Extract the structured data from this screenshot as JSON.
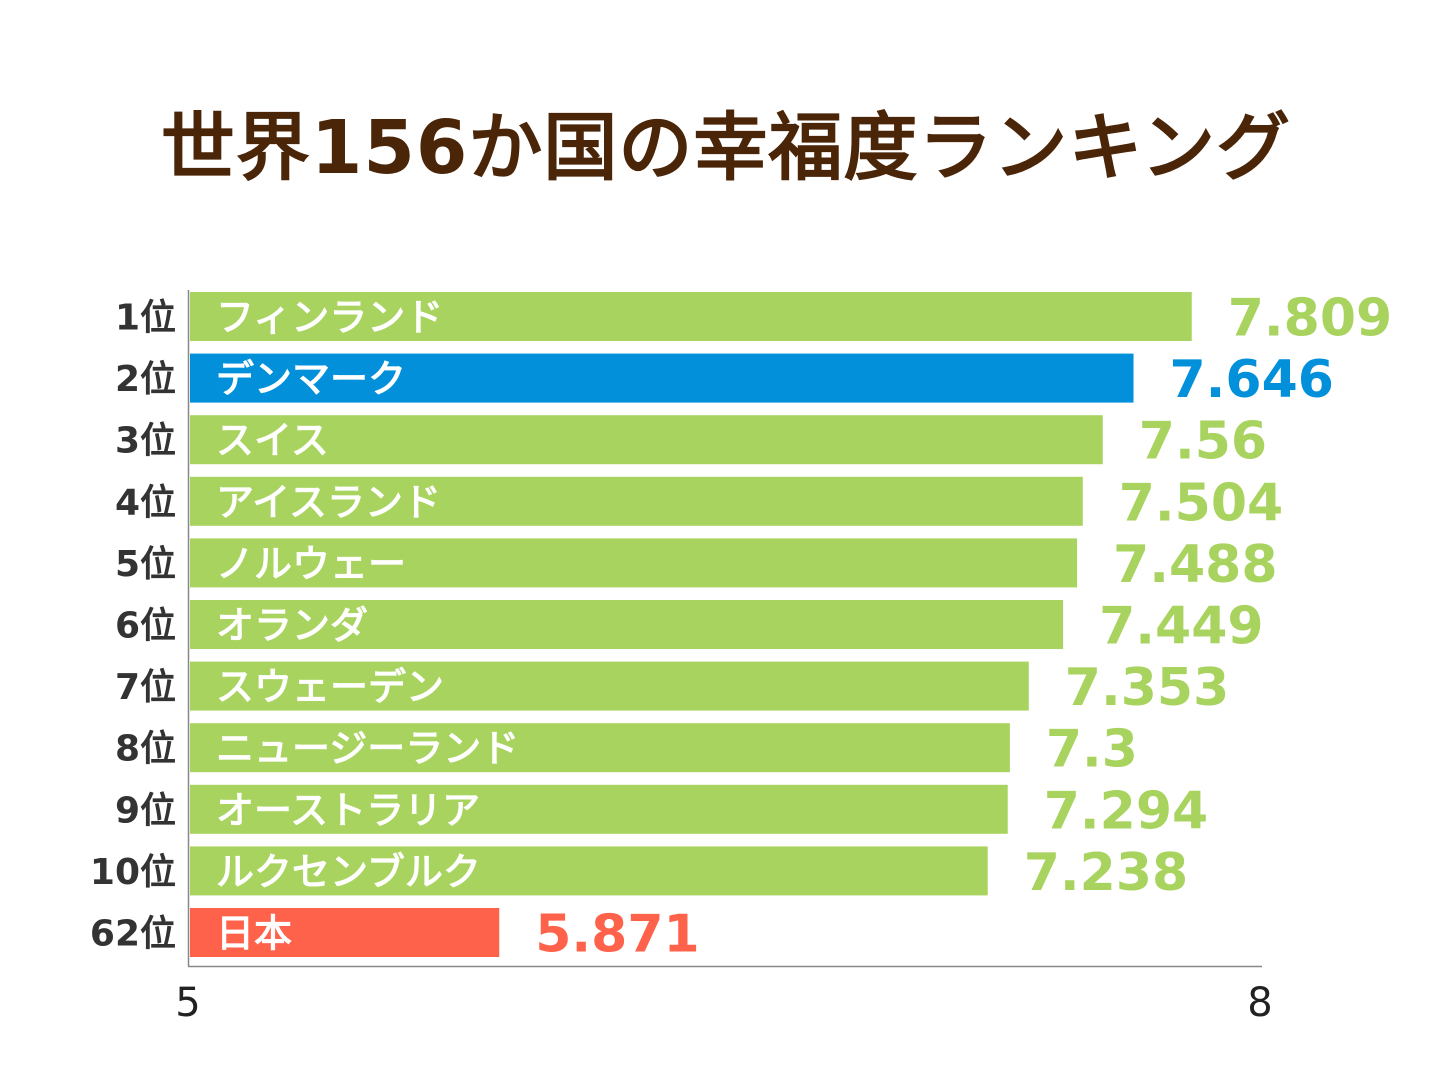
{
  "chart_data": {
    "type": "bar",
    "orientation": "horizontal",
    "title": "世界156か国の幸福度ランキング",
    "xlim": [
      5,
      8
    ],
    "xticks": [
      "5",
      "8"
    ],
    "grid": false,
    "rows": [
      {
        "rank": "1位",
        "country": "フィンランド",
        "value": 7.809,
        "value_label": "7.809",
        "color": "#a8d35f"
      },
      {
        "rank": "2位",
        "country": "デンマーク",
        "value": 7.646,
        "value_label": "7.646",
        "color": "#0290db"
      },
      {
        "rank": "3位",
        "country": "スイス",
        "value": 7.56,
        "value_label": "7.56",
        "color": "#a8d35f"
      },
      {
        "rank": "4位",
        "country": "アイスランド",
        "value": 7.504,
        "value_label": "7.504",
        "color": "#a8d35f"
      },
      {
        "rank": "5位",
        "country": "ノルウェー",
        "value": 7.488,
        "value_label": "7.488",
        "color": "#a8d35f"
      },
      {
        "rank": "6位",
        "country": "オランダ",
        "value": 7.449,
        "value_label": "7.449",
        "color": "#a8d35f"
      },
      {
        "rank": "7位",
        "country": "スウェーデン",
        "value": 7.353,
        "value_label": "7.353",
        "color": "#a8d35f"
      },
      {
        "rank": "8位",
        "country": "ニュージーランド",
        "value": 7.3,
        "value_label": "7.3",
        "color": "#a8d35f"
      },
      {
        "rank": "9位",
        "country": "オーストラリア",
        "value": 7.294,
        "value_label": "7.294",
        "color": "#a8d35f"
      },
      {
        "rank": "10位",
        "country": "ルクセンブルク",
        "value": 7.238,
        "value_label": "7.238",
        "color": "#a8d35f"
      },
      {
        "rank": "62位",
        "country": "日本",
        "value": 5.871,
        "value_label": "5.871",
        "color": "#ff624b"
      }
    ]
  }
}
